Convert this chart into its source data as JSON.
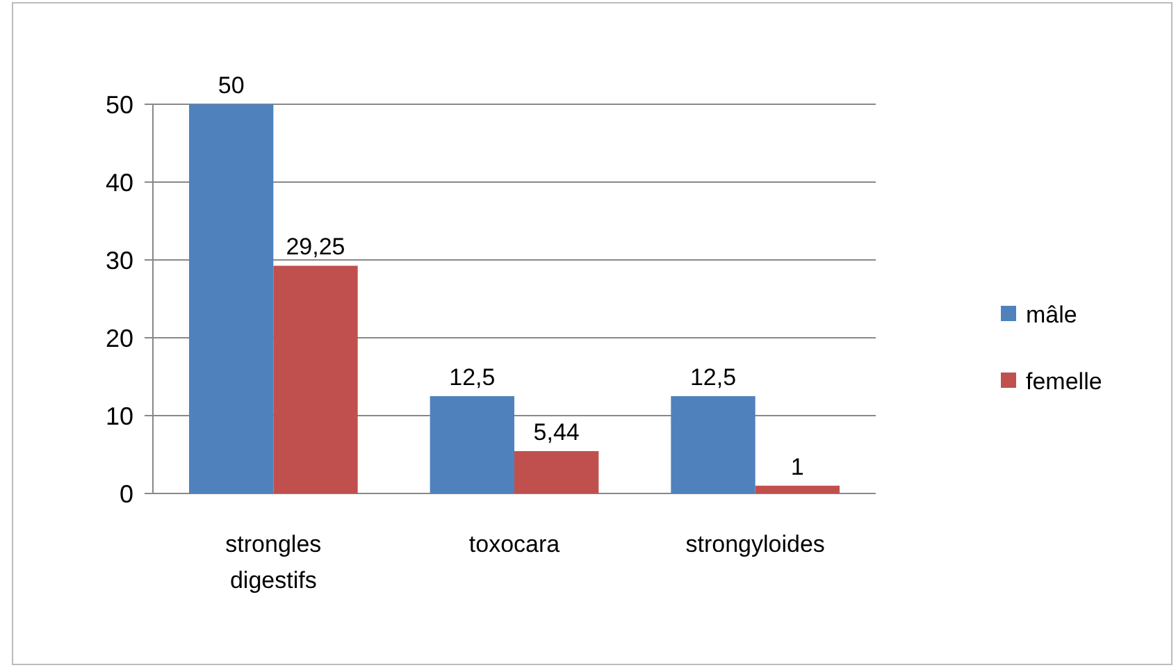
{
  "chart_data": {
    "type": "bar",
    "categories": [
      "strongles digestifs",
      "toxocara",
      "strongyloides"
    ],
    "series": [
      {
        "name": "mâle",
        "color": "#4f81bd",
        "values": [
          50,
          12.5,
          12.5
        ],
        "value_labels": [
          "50",
          "12,5",
          "12,5"
        ]
      },
      {
        "name": "femelle",
        "color": "#c0504d",
        "values": [
          29.25,
          5.44,
          1
        ],
        "value_labels": [
          "29,25",
          "5,44",
          "1"
        ]
      }
    ],
    "ylim": [
      0,
      50
    ],
    "yticks": [
      0,
      10,
      20,
      30,
      40,
      50
    ],
    "grid": "y",
    "legend": "right"
  }
}
